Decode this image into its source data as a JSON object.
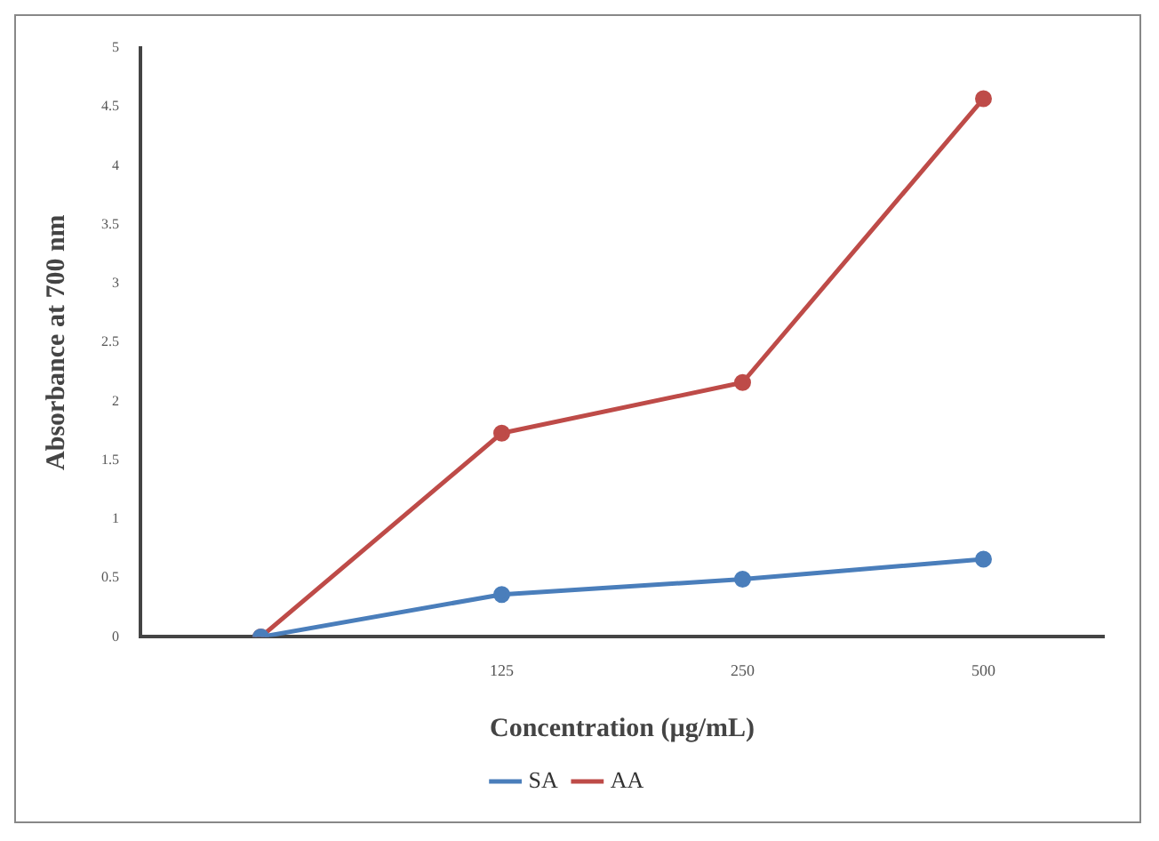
{
  "chart_data": {
    "type": "line",
    "xlabel": "Concentration (µg/mL)",
    "ylabel": "Absorbance at 700 nm",
    "categories": [
      null,
      "125",
      "250",
      "500"
    ],
    "series": [
      {
        "name": "SA",
        "color": "#4a7ebb",
        "values": [
          0,
          0.36,
          0.49,
          0.66
        ]
      },
      {
        "name": "AA",
        "color": "#be4b48",
        "values": [
          0,
          1.73,
          2.16,
          4.57
        ]
      }
    ],
    "ylim": [
      0,
      5
    ],
    "yticks": [
      0,
      0.5,
      1,
      1.5,
      2,
      2.5,
      3,
      3.5,
      4,
      4.5,
      5
    ],
    "grid": false,
    "legend": "bottom",
    "marker": "circle"
  }
}
